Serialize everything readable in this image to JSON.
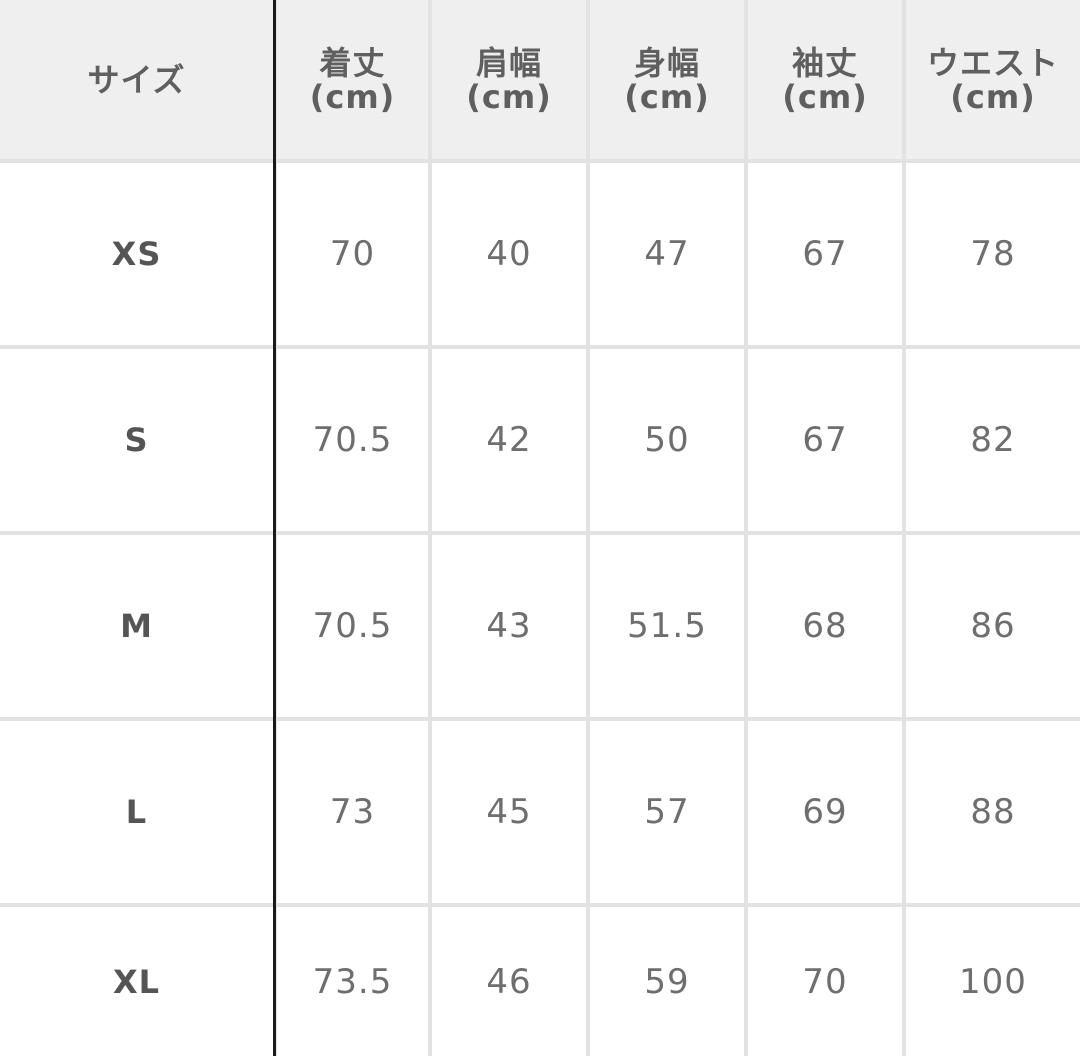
{
  "table": {
    "header": [
      {
        "name": "サイズ",
        "unit": ""
      },
      {
        "name": "着丈",
        "unit": "(cm)"
      },
      {
        "name": "肩幅",
        "unit": "(cm)"
      },
      {
        "name": "身幅",
        "unit": "(cm)"
      },
      {
        "name": "袖丈",
        "unit": "(cm)"
      },
      {
        "name": "ウエスト",
        "unit": "(cm)"
      }
    ],
    "rows": [
      [
        "XS",
        "70",
        "40",
        "47",
        "67",
        "78"
      ],
      [
        "S",
        "70.5",
        "42",
        "50",
        "67",
        "82"
      ],
      [
        "M",
        "70.5",
        "43",
        "51.5",
        "68",
        "86"
      ],
      [
        "L",
        "73",
        "45",
        "57",
        "69",
        "88"
      ],
      [
        "XL",
        "73.5",
        "46",
        "59",
        "70",
        "100"
      ]
    ]
  }
}
